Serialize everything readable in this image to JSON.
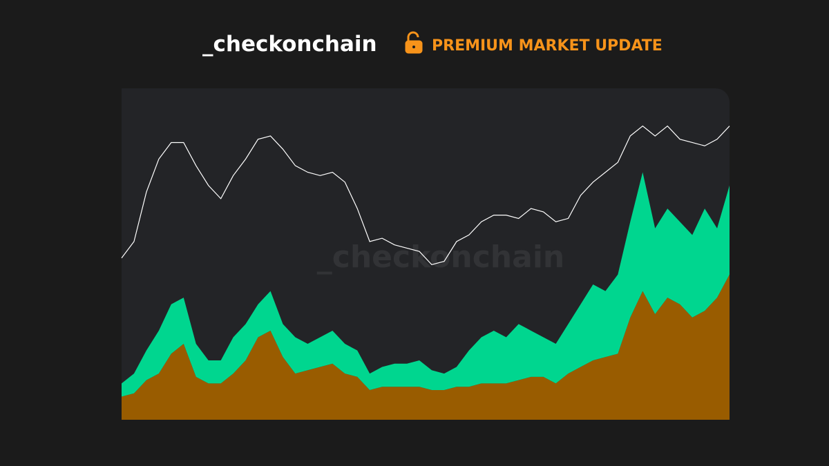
{
  "header": {
    "brand": "_checkonchain",
    "badge": "PREMIUM MARKET UPDATE"
  },
  "chart_data": {
    "type": "area",
    "watermark": "_checkonchain",
    "ylim": [
      0,
      100
    ],
    "series": [
      {
        "type": "area",
        "stacked": true,
        "color": "#995c00",
        "values": [
          7,
          8,
          12,
          14,
          20,
          23,
          13,
          11,
          11,
          14,
          18,
          25,
          27,
          19,
          14,
          15,
          16,
          17,
          14,
          13,
          9,
          10,
          10,
          10,
          10,
          9,
          9,
          10,
          10,
          11,
          11,
          11,
          12,
          13,
          13,
          11,
          14,
          16,
          18,
          19,
          20,
          31,
          39,
          32,
          37,
          35,
          31,
          33,
          37,
          44
        ]
      },
      {
        "type": "area",
        "stacked": true,
        "color": "#00d68f",
        "values": [
          4,
          6,
          9,
          13,
          15,
          14,
          10,
          7,
          7,
          11,
          11,
          10,
          12,
          10,
          11,
          8,
          9,
          10,
          9,
          8,
          5,
          6,
          7,
          7,
          8,
          6,
          5,
          6,
          11,
          14,
          16,
          14,
          17,
          14,
          12,
          12,
          15,
          19,
          23,
          20,
          24,
          29,
          36,
          26,
          27,
          25,
          25,
          31,
          21,
          27
        ]
      },
      {
        "type": "line",
        "color": "#ffffff",
        "values": [
          49,
          54,
          69,
          79,
          84,
          84,
          77,
          71,
          67,
          74,
          79,
          85,
          86,
          82,
          77,
          75,
          74,
          75,
          72,
          64,
          54,
          55,
          53,
          52,
          51,
          47,
          48,
          54,
          56,
          60,
          62,
          62,
          61,
          64,
          63,
          60,
          61,
          68,
          72,
          75,
          78,
          86,
          89,
          86,
          89,
          85,
          84,
          83,
          85,
          89
        ]
      }
    ]
  }
}
